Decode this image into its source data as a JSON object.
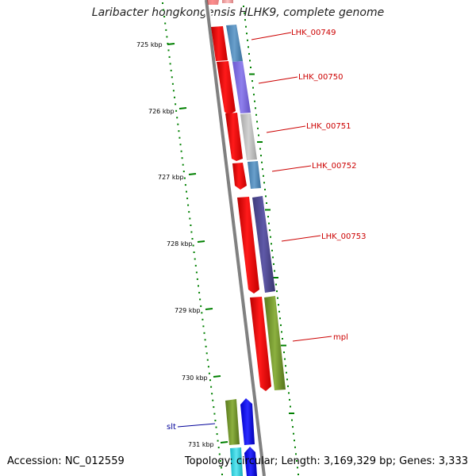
{
  "title": "Laribacter hongkongensis HLHK9, complete genome",
  "accession": "Accession: NC_012559",
  "topology": "Topology: circular; Length: 3,169,329 bp; Genes: 3,333",
  "colors": {
    "backbone": "#7a7a7a",
    "ticks": "#008000",
    "forward_cds": "#ff0000",
    "reverse_cds": "#ff0000",
    "label_red": "#cc0000",
    "label_blue": "#000099"
  },
  "scale_ticks": [
    {
      "label": "725 kbp"
    },
    {
      "label": "726 kbp"
    },
    {
      "label": "727 kbp"
    },
    {
      "label": "728 kbp"
    },
    {
      "label": "729 kbp"
    },
    {
      "label": "730 kbp"
    },
    {
      "label": "731 kbp"
    }
  ],
  "gene_labels": [
    {
      "name": "LHK_00749",
      "color": "#cc0000"
    },
    {
      "name": "LHK_00750",
      "color": "#cc0000"
    },
    {
      "name": "LHK_00751",
      "color": "#cc0000"
    },
    {
      "name": "LHK_00752",
      "color": "#cc0000"
    },
    {
      "name": "LHK_00753",
      "color": "#cc0000"
    },
    {
      "name": "mpl",
      "color": "#cc0000"
    },
    {
      "name": "slt",
      "color": "#000099"
    }
  ]
}
